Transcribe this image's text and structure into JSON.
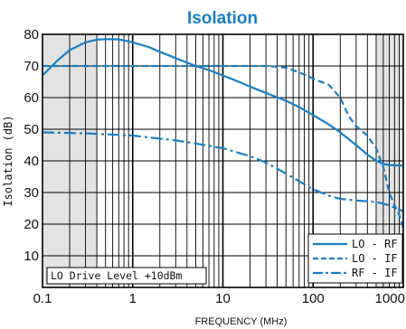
{
  "chart_data": {
    "type": "line",
    "title": "Isolation",
    "xlabel": "FREQUENCY (MHz)",
    "ylabel": "Isolation (dB)",
    "xscale": "log",
    "xlim": [
      0.1,
      1000
    ],
    "ylim": [
      0,
      80
    ],
    "x_ticks": [
      0.1,
      1,
      10,
      100,
      1000
    ],
    "x_tick_labels": [
      "0.1",
      "1",
      "10",
      "100",
      "1000"
    ],
    "y_ticks": [
      10,
      20,
      30,
      40,
      50,
      60,
      70,
      80
    ],
    "y_tick_labels": [
      "10",
      "20",
      "30",
      "40",
      "50",
      "60",
      "70",
      "80"
    ],
    "grid": true,
    "shaded_regions_x": [
      [
        0.1,
        0.4
      ],
      [
        500,
        1000
      ]
    ],
    "legend_position": "bottom-right",
    "annotation": "LO Drive Level +10dBm",
    "line_color": "#1a7fc4",
    "shade_color": "#e3e3e3",
    "title_color": "#1a7fc4",
    "series": [
      {
        "name": "LO - RF",
        "style": "solid",
        "x": [
          0.1,
          0.15,
          0.2,
          0.3,
          0.4,
          0.5,
          0.7,
          1,
          1.5,
          2,
          3,
          5,
          7,
          10,
          15,
          20,
          30,
          50,
          70,
          100,
          150,
          200,
          300,
          400,
          500,
          600,
          700,
          800,
          1000
        ],
        "y": [
          67,
          72,
          75,
          77.5,
          78.3,
          78.5,
          78.4,
          77.5,
          76,
          74.5,
          72.5,
          70,
          68.7,
          67,
          65,
          63.5,
          61.5,
          59,
          57,
          54.5,
          51.5,
          49,
          45,
          42,
          40,
          39,
          38.7,
          38.6,
          38.5
        ]
      },
      {
        "name": "LO - IF",
        "style": "dashed",
        "x": [
          0.1,
          0.3,
          1,
          3,
          10,
          20,
          30,
          50,
          70,
          100,
          150,
          200,
          250,
          300,
          400,
          500,
          600,
          700,
          800,
          900,
          1000
        ],
        "y": [
          70,
          70,
          70,
          70,
          70,
          70,
          70,
          69.5,
          68,
          66,
          64,
          60,
          54,
          51,
          48,
          44,
          38,
          30,
          26,
          23,
          19
        ]
      },
      {
        "name": "RF - IF",
        "style": "dashdot",
        "x": [
          0.1,
          0.3,
          1,
          3,
          5,
          10,
          20,
          30,
          50,
          100,
          150,
          200,
          300,
          500,
          700,
          1000
        ],
        "y": [
          49,
          48.7,
          48,
          46.5,
          45.5,
          44,
          41.5,
          39.5,
          36,
          31,
          29,
          28,
          27.5,
          27,
          26,
          24
        ]
      }
    ]
  }
}
